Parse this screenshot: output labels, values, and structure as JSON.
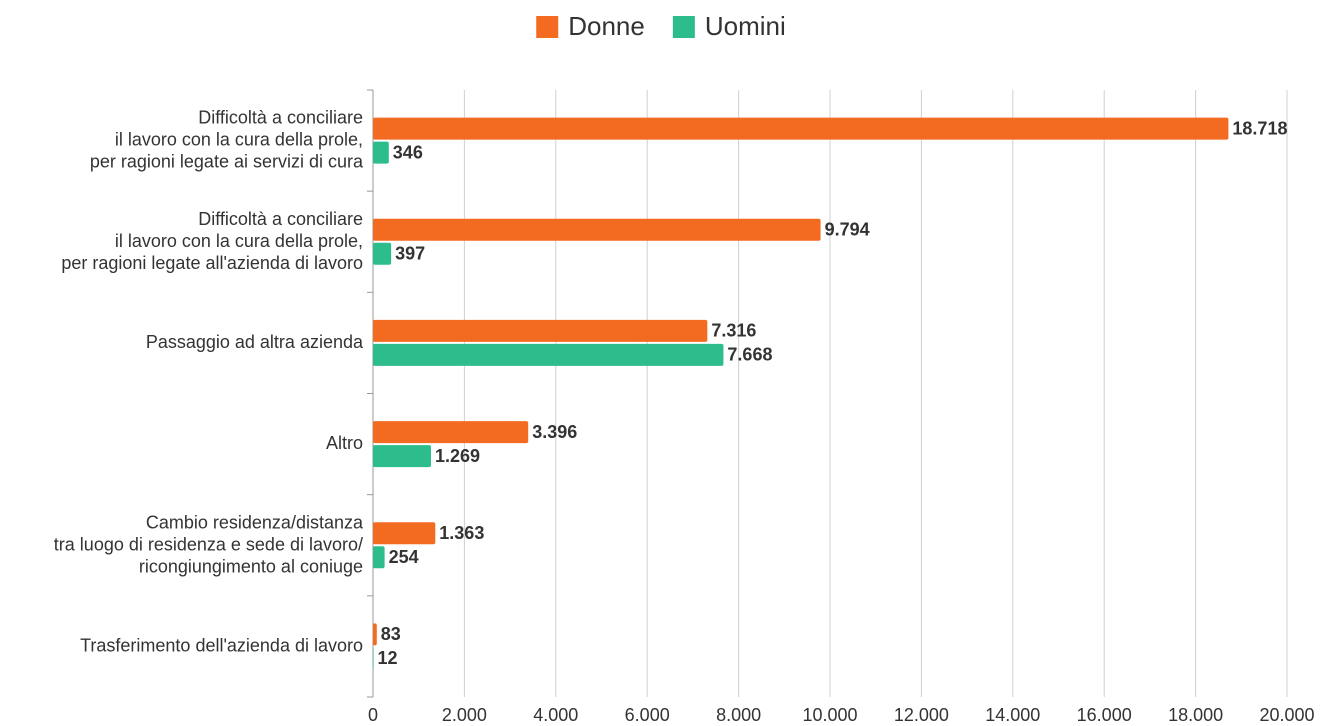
{
  "chart_data": {
    "type": "hbar",
    "categories": [
      [
        "Difficoltà a conciliare",
        "il lavoro con la cura della prole,",
        "per ragioni legate ai servizi di cura"
      ],
      [
        "Difficoltà a conciliare",
        "il lavoro con la cura della prole,",
        "per ragioni legate all'azienda di lavoro"
      ],
      [
        "Passaggio ad altra azienda"
      ],
      [
        "Altro"
      ],
      [
        "Cambio residenza/distanza",
        "tra luogo di residenza e sede di lavoro/",
        "ricongiungimento al coniuge"
      ],
      [
        "Trasferimento dell'azienda di lavoro"
      ]
    ],
    "series": [
      {
        "name": "Donne",
        "color": "#f26b21",
        "values": [
          18718,
          9794,
          7316,
          3396,
          1363,
          83
        ],
        "value_labels": [
          "18.718",
          "9.794",
          "7.316",
          "3.396",
          "1.363",
          "83"
        ]
      },
      {
        "name": "Uomini",
        "color": "#2dbd8c",
        "values": [
          346,
          397,
          7668,
          1269,
          254,
          12
        ],
        "value_labels": [
          "346",
          "397",
          "7.668",
          "1.269",
          "254",
          "12"
        ]
      }
    ],
    "xlim": [
      0,
      20000
    ],
    "xticks": [
      0,
      {
        "value": 2000,
        "label": "2.000"
      },
      {
        "value": 4000,
        "label": "4.000"
      },
      {
        "value": 6000,
        "label": "6.000"
      },
      {
        "value": 8000,
        "label": "8.000"
      },
      {
        "value": 10000,
        "label": "10.000"
      },
      {
        "value": 12000,
        "label": "12.000"
      },
      {
        "value": 14000,
        "label": "14.000"
      },
      {
        "value": 16000,
        "label": "16.000"
      },
      {
        "value": 18000,
        "label": "18.000"
      },
      {
        "value": 20000,
        "label": "20.000"
      }
    ],
    "grid": true,
    "legend": "top"
  }
}
